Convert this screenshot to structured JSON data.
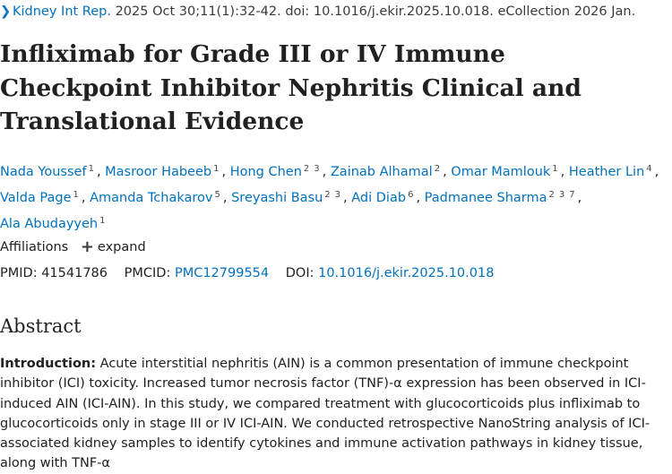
{
  "citation": {
    "chevron_icon": "chevron-right-icon",
    "journal": "Kidney Int Rep.",
    "details": "2025 Oct 30;11(1):32-42. doi: 10.1016/j.ekir.2025.10.018. eCollection 2026 Jan."
  },
  "title": "Infliximab for Grade III or IV Immune Checkpoint Inhibitor Nephritis Clinical and Translational Evidence",
  "authors": [
    {
      "name": "Nada Youssef",
      "affs": [
        "1"
      ]
    },
    {
      "name": "Masroor Habeeb",
      "affs": [
        "1"
      ]
    },
    {
      "name": "Hong Chen",
      "affs": [
        "2",
        "3"
      ]
    },
    {
      "name": "Zainab Alhamal",
      "affs": [
        "2"
      ]
    },
    {
      "name": "Omar Mamlouk",
      "affs": [
        "1"
      ]
    },
    {
      "name": "Heather Lin",
      "affs": [
        "4"
      ]
    },
    {
      "name": "Valda Page",
      "affs": [
        "1"
      ]
    },
    {
      "name": "Amanda Tchakarov",
      "affs": [
        "5"
      ]
    },
    {
      "name": "Sreyashi Basu",
      "affs": [
        "2",
        "3"
      ]
    },
    {
      "name": "Adi Diab",
      "affs": [
        "6"
      ]
    },
    {
      "name": "Padmanee Sharma",
      "affs": [
        "2",
        "3",
        "7"
      ]
    },
    {
      "name": "Ala Abudayyeh",
      "affs": [
        "1"
      ]
    }
  ],
  "affiliations": {
    "label": "Affiliations",
    "expand_icon": "plus-icon",
    "expand_label": "expand"
  },
  "ids": {
    "pmid_label": "PMID:",
    "pmid": "41541786",
    "pmcid_label": "PMCID:",
    "pmcid": "PMC12799554",
    "doi_label": "DOI:",
    "doi": "10.1016/j.ekir.2025.10.018"
  },
  "abstract": {
    "heading": "Abstract",
    "intro_label": "Introduction:",
    "intro_text": "Acute interstitial nephritis (AIN) is a common presentation of immune checkpoint inhibitor (ICI) toxicity. Increased tumor necrosis factor (TNF)-α expression has been observed in ICI-induced AIN (ICI-AIN). In this study, we compared treatment with glucocorticoids plus infliximab to glucocorticoids only in stage III or IV ICI-AIN. We conducted retrospective NanoString analysis of ICI-associated kidney samples to identify cytokines and immune activation pathways in kidney tissue, along with TNF-α"
  },
  "colors": {
    "link": "#0071bc",
    "text": "#212121"
  }
}
